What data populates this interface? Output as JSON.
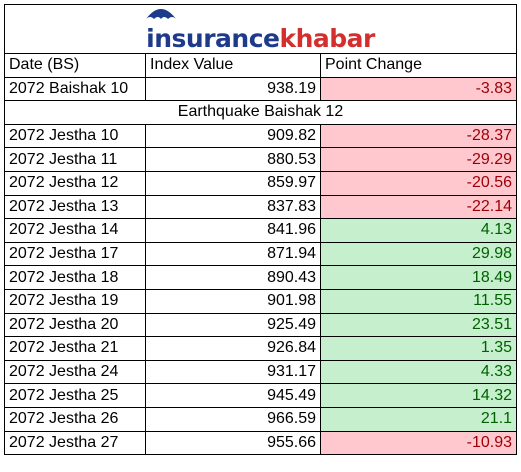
{
  "logo": {
    "part1": "insurance",
    "part2": "khabar",
    "brand_blue": "#1e3a8a",
    "brand_red": "#d32f2f"
  },
  "headers": {
    "date": "Date (BS)",
    "index": "Index Value",
    "change": "Point Change"
  },
  "first_row": {
    "date": "2072 Baishak 10",
    "index": "938.19",
    "change": "-3.83",
    "status": "neg"
  },
  "section_label": "Earthquake Baishak 12",
  "rows": [
    {
      "date": "2072 Jestha 10",
      "index": "909.82",
      "change": "-28.37",
      "status": "neg"
    },
    {
      "date": "2072 Jestha 11",
      "index": "880.53",
      "change": "-29.29",
      "status": "neg"
    },
    {
      "date": "2072 Jestha 12",
      "index": "859.97",
      "change": "-20.56",
      "status": "neg"
    },
    {
      "date": "2072 Jestha 13",
      "index": "837.83",
      "change": "-22.14",
      "status": "neg"
    },
    {
      "date": "2072 Jestha 14",
      "index": "841.96",
      "change": "4.13",
      "status": "pos"
    },
    {
      "date": "2072 Jestha 17",
      "index": "871.94",
      "change": "29.98",
      "status": "pos"
    },
    {
      "date": "2072 Jestha 18",
      "index": "890.43",
      "change": "18.49",
      "status": "pos"
    },
    {
      "date": "2072 Jestha 19",
      "index": "901.98",
      "change": "11.55",
      "status": "pos"
    },
    {
      "date": "2072 Jestha 20",
      "index": "925.49",
      "change": "23.51",
      "status": "pos"
    },
    {
      "date": "2072 Jestha 21",
      "index": "926.84",
      "change": "1.35",
      "status": "pos"
    },
    {
      "date": "2072 Jestha 24",
      "index": "931.17",
      "change": "4.33",
      "status": "pos"
    },
    {
      "date": "2072 Jestha 25",
      "index": "945.49",
      "change": "14.32",
      "status": "pos"
    },
    {
      "date": "2072 Jestha 26",
      "index": "966.59",
      "change": "21.1",
      "status": "pos"
    },
    {
      "date": "2072 Jestha 27",
      "index": "955.66",
      "change": "-10.93",
      "status": "neg"
    }
  ],
  "colors": {
    "neg_fill": "#ffc7ce",
    "neg_text": "#9c0006",
    "pos_fill": "#c6efce",
    "pos_text": "#006100"
  }
}
